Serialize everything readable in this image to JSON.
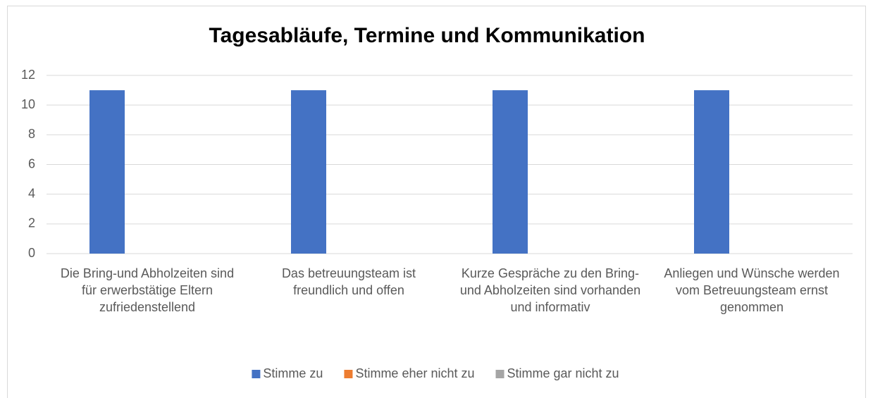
{
  "chart_data": {
    "type": "bar",
    "title": "Tagesabläufe, Termine und Kommunikation",
    "categories": [
      "Die Bring-und Abholzeiten sind für erwerbstätige Eltern zufriedenstellend",
      "Das betreuungsteam ist freundlich und offen",
      "Kurze Gespräche zu den Bring- und Abholzeiten sind vorhanden und informativ",
      "Anliegen und Wünsche werden vom Betreuungsteam ernst genommen"
    ],
    "series": [
      {
        "name": "Stimme zu",
        "color": "#4472c4",
        "values": [
          11,
          11,
          11,
          11
        ]
      },
      {
        "name": "Stimme eher nicht zu",
        "color": "#ed7d31",
        "values": [
          0,
          0,
          0,
          0
        ]
      },
      {
        "name": "Stimme gar nicht zu",
        "color": "#a5a5a5",
        "values": [
          0,
          0,
          0,
          0
        ]
      }
    ],
    "ylim": [
      0,
      12
    ],
    "yticks": [
      0,
      2,
      4,
      6,
      8,
      10,
      12
    ],
    "grid": true,
    "legend": "bottom"
  }
}
